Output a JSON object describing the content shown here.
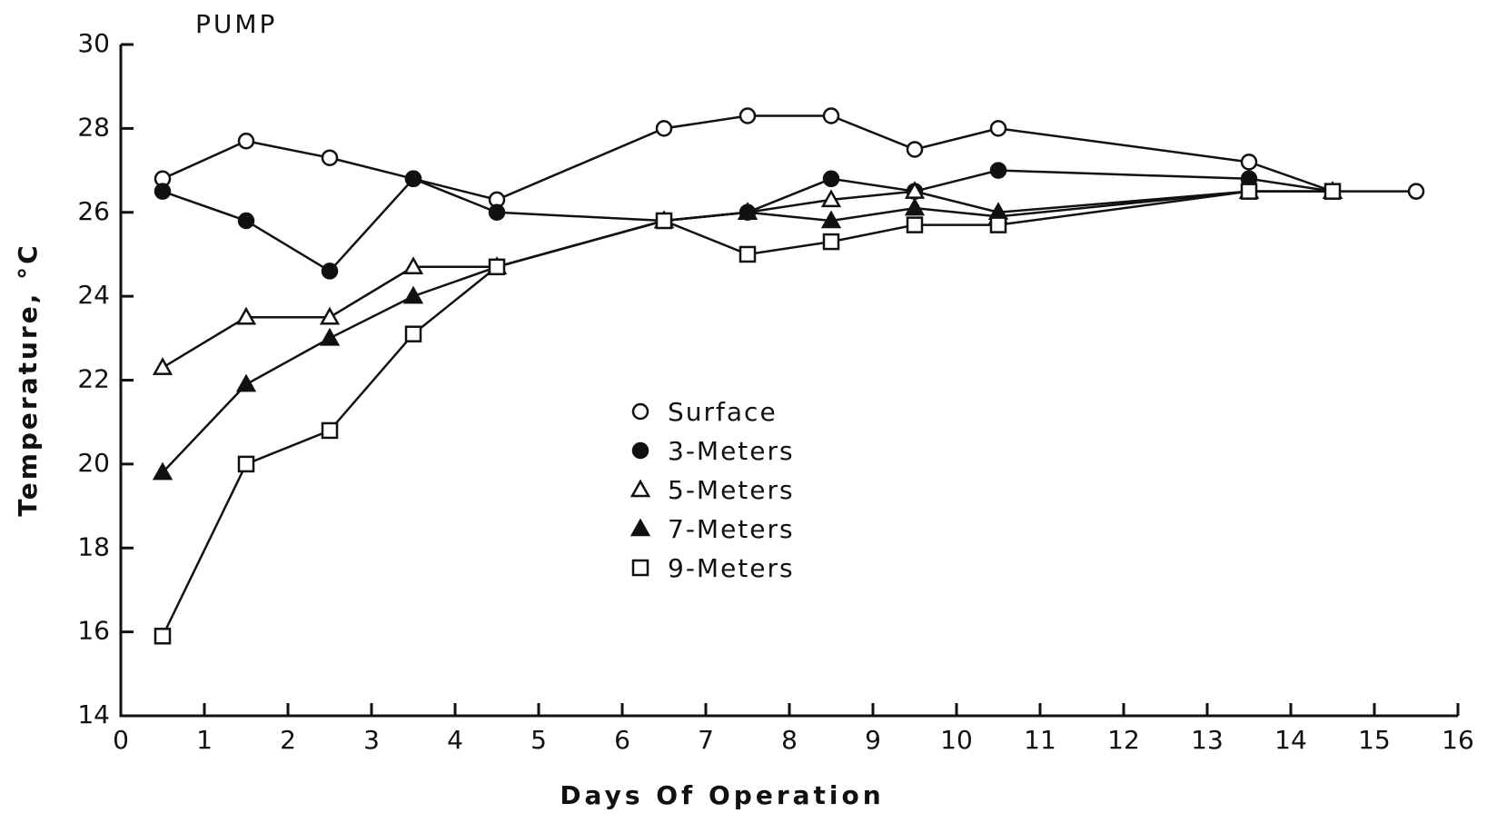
{
  "chart_data": {
    "type": "line",
    "title": "PUMP",
    "xlabel": "Days Of Operation",
    "ylabel": "Temperature, °C",
    "xlim": [
      0,
      16
    ],
    "ylim": [
      14,
      30
    ],
    "xticks": [
      0,
      1,
      2,
      3,
      4,
      5,
      6,
      7,
      8,
      9,
      10,
      11,
      12,
      13,
      14,
      15,
      16
    ],
    "yticks": [
      14,
      16,
      18,
      20,
      22,
      24,
      26,
      28,
      30
    ],
    "grid": false,
    "legend": "center",
    "series": [
      {
        "name": "Surface",
        "color": "#111111",
        "marker": "open-circle",
        "x": [
          0.5,
          1.5,
          2.5,
          3.5,
          4.5,
          6.5,
          7.5,
          8.5,
          9.5,
          10.5,
          13.5,
          14.5,
          15.5
        ],
        "values": [
          26.8,
          27.7,
          27.3,
          26.8,
          26.3,
          28.0,
          28.3,
          28.3,
          27.5,
          28.0,
          27.2,
          26.5,
          26.5
        ]
      },
      {
        "name": "3-Meters",
        "color": "#111111",
        "marker": "filled-circle",
        "x": [
          0.5,
          1.5,
          2.5,
          3.5,
          4.5,
          6.5,
          7.5,
          8.5,
          9.5,
          10.5,
          13.5,
          14.5
        ],
        "values": [
          26.5,
          25.8,
          24.6,
          26.8,
          26.0,
          25.8,
          26.0,
          26.8,
          26.5,
          27.0,
          26.8,
          26.5
        ]
      },
      {
        "name": "5-Meters",
        "color": "#111111",
        "marker": "open-triangle",
        "x": [
          0.5,
          1.5,
          2.5,
          3.5,
          4.5,
          6.5,
          7.5,
          8.5,
          9.5,
          10.5,
          13.5,
          14.5
        ],
        "values": [
          22.3,
          23.5,
          23.5,
          24.7,
          24.7,
          25.8,
          26.0,
          26.3,
          26.5,
          26.0,
          26.5,
          26.5
        ]
      },
      {
        "name": "7-Meters",
        "color": "#111111",
        "marker": "filled-triangle",
        "x": [
          0.5,
          1.5,
          2.5,
          3.5,
          4.5,
          6.5,
          7.5,
          8.5,
          9.5,
          10.5,
          13.5,
          14.5
        ],
        "values": [
          19.8,
          21.9,
          23.0,
          24.0,
          24.7,
          25.8,
          26.0,
          25.8,
          26.1,
          25.9,
          26.5,
          26.5
        ]
      },
      {
        "name": "9-Meters",
        "color": "#111111",
        "marker": "open-square",
        "x": [
          0.5,
          1.5,
          2.5,
          3.5,
          4.5,
          6.5,
          7.5,
          8.5,
          9.5,
          10.5,
          13.5,
          14.5
        ],
        "values": [
          15.9,
          20.0,
          20.8,
          23.1,
          24.7,
          25.8,
          25.0,
          25.3,
          25.7,
          25.7,
          26.5,
          26.5
        ]
      }
    ]
  }
}
